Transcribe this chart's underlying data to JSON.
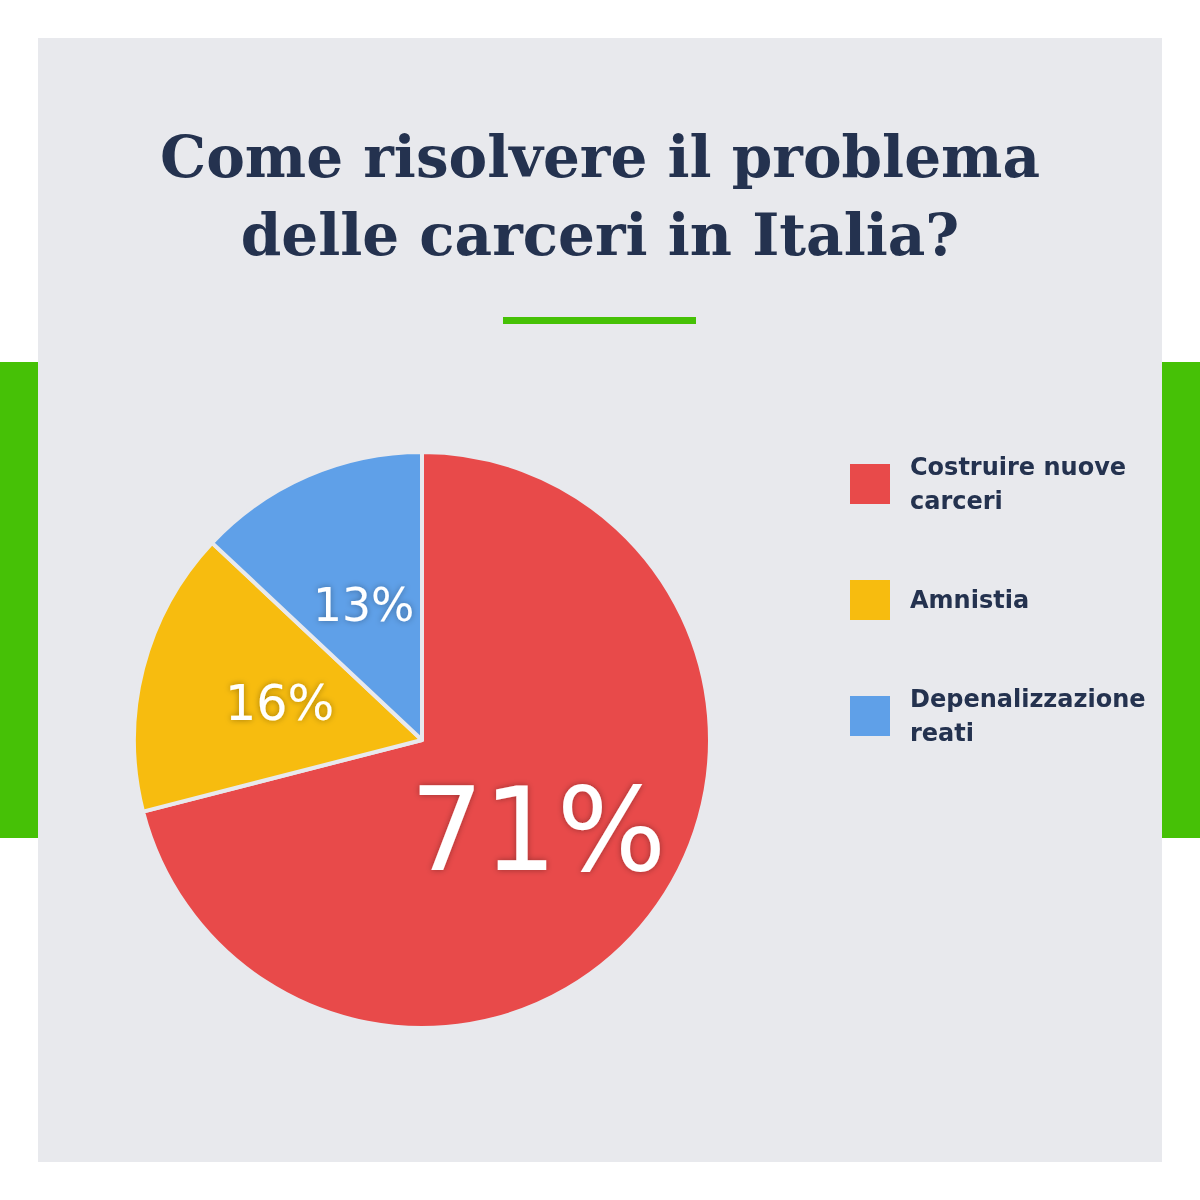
{
  "chart_data": {
    "type": "pie",
    "title": "Come risolvere il problema delle carceri in Italia?",
    "categories": [
      "Costruire nuove carceri",
      "Amnistia",
      "Depenalizzazione reati"
    ],
    "values": [
      71,
      16,
      13
    ],
    "colors": [
      "#e84a4a",
      "#f7bc0f",
      "#5fa0e8"
    ],
    "value_labels": [
      "71%",
      "16%",
      "13%"
    ],
    "legend": "right"
  }
}
